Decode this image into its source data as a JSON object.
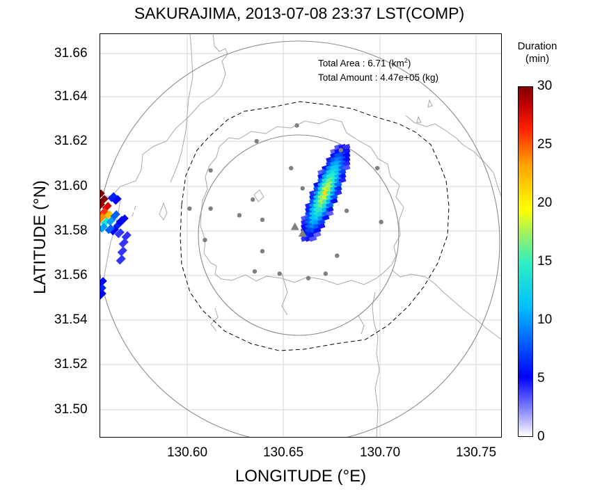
{
  "title": "SAKURAJIMA, 2013-07-08 23:37 LST(COMP)",
  "stats": {
    "area_label": "Total Area   : 6.71 (km",
    "area_sup": "2",
    "area_close": ")",
    "amount_label": "Total Amount : 4.47e+05 (kg)"
  },
  "colorbar": {
    "title_line1": "Duration",
    "title_line2": "(min)",
    "ticks": [
      "30",
      "25",
      "20",
      "15",
      "10",
      "5",
      "0"
    ],
    "range": [
      0,
      30
    ]
  },
  "chart_data": {
    "type": "heatmap",
    "title": "SAKURAJIMA, 2013-07-08 23:37 LST(COMP)",
    "xlabel": "LONGITUDE (°E)",
    "ylabel": "LATITUDE (°N)",
    "xlim": [
      130.555,
      130.765
    ],
    "ylim": [
      31.487,
      31.667
    ],
    "xticks": [
      "130.60",
      "130.65",
      "130.70",
      "130.75"
    ],
    "yticks": [
      "31.66",
      "31.64",
      "31.62",
      "31.60",
      "31.58",
      "31.56",
      "31.54",
      "31.52",
      "31.50"
    ],
    "grid": true,
    "colorbar_label": "Duration (min)",
    "center": [
      130.659,
      31.578
    ],
    "vents": [
      [
        130.657,
        31.581
      ],
      [
        130.661,
        31.578
      ]
    ],
    "stations": [
      [
        130.658,
        31.626
      ],
      [
        130.637,
        31.619
      ],
      [
        130.613,
        31.606
      ],
      [
        130.655,
        31.607
      ],
      [
        130.681,
        31.615
      ],
      [
        130.7,
        31.607
      ],
      [
        130.602,
        31.589
      ],
      [
        130.613,
        31.589
      ],
      [
        130.628,
        31.586
      ],
      [
        130.635,
        31.593
      ],
      [
        130.64,
        31.584
      ],
      [
        130.661,
        31.598
      ],
      [
        130.684,
        31.588
      ],
      [
        130.702,
        31.583
      ],
      [
        130.61,
        31.575
      ],
      [
        130.64,
        31.57
      ],
      [
        130.636,
        31.561
      ],
      [
        130.649,
        31.56
      ],
      [
        130.664,
        31.558
      ],
      [
        130.673,
        31.56
      ],
      [
        130.679,
        31.568
      ]
    ],
    "plume": {
      "center": [
        130.673,
        31.596
      ],
      "max_duration": 18
    }
  }
}
